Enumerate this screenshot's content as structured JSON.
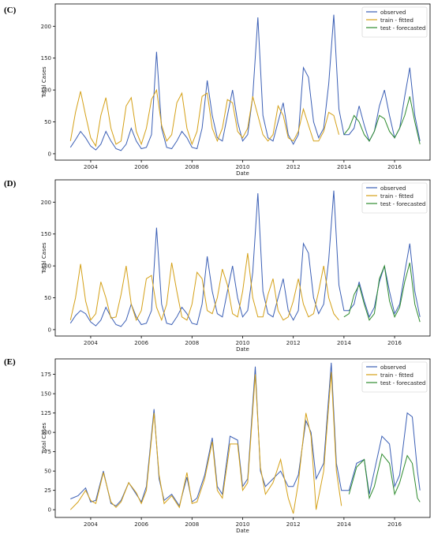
{
  "chart_data": [
    {
      "panel_label": "(C)",
      "type": "line",
      "xlabel": "Date",
      "ylabel": "Total Cases",
      "xlim": [
        2002.6,
        2017.4
      ],
      "ylim": [
        -10,
        235
      ],
      "xticks": [
        2004,
        2006,
        2008,
        2010,
        2012,
        2014,
        2016
      ],
      "yticks": [
        0,
        50,
        100,
        150,
        200
      ],
      "legend_position": "top-right",
      "series": [
        {
          "name": "observed",
          "color": "#3b5fb5",
          "x": [
            2003.2,
            2003.4,
            2003.6,
            2003.8,
            2004.0,
            2004.2,
            2004.4,
            2004.6,
            2004.8,
            2005.0,
            2005.2,
            2005.4,
            2005.6,
            2005.8,
            2006.0,
            2006.2,
            2006.4,
            2006.6,
            2006.8,
            2007.0,
            2007.2,
            2007.4,
            2007.6,
            2007.8,
            2008.0,
            2008.2,
            2008.4,
            2008.6,
            2008.8,
            2009.0,
            2009.2,
            2009.4,
            2009.6,
            2009.8,
            2010.0,
            2010.2,
            2010.4,
            2010.6,
            2010.8,
            2011.0,
            2011.2,
            2011.4,
            2011.6,
            2011.8,
            2012.0,
            2012.2,
            2012.4,
            2012.6,
            2012.8,
            2013.0,
            2013.2,
            2013.4,
            2013.6,
            2013.8,
            2014.0,
            2014.2,
            2014.4,
            2014.6,
            2014.8,
            2015.0,
            2015.2,
            2015.4,
            2015.6,
            2015.8,
            2016.0,
            2016.2,
            2016.4,
            2016.6,
            2016.8,
            2017.0
          ],
          "y": [
            10,
            22,
            35,
            25,
            12,
            6,
            15,
            35,
            20,
            8,
            5,
            15,
            40,
            20,
            8,
            10,
            30,
            160,
            40,
            10,
            8,
            20,
            35,
            25,
            10,
            8,
            40,
            115,
            60,
            25,
            20,
            60,
            100,
            50,
            20,
            30,
            90,
            214,
            60,
            25,
            20,
            50,
            80,
            30,
            15,
            30,
            135,
            120,
            50,
            25,
            40,
            110,
            218,
            70,
            30,
            30,
            40,
            75,
            45,
            20,
            35,
            75,
            100,
            60,
            25,
            40,
            90,
            135,
            60,
            20
          ]
        },
        {
          "name": "train - fitted",
          "color": "#d4a017",
          "x": [
            2003.2,
            2003.4,
            2003.6,
            2003.8,
            2004.0,
            2004.2,
            2004.4,
            2004.6,
            2004.8,
            2005.0,
            2005.2,
            2005.4,
            2005.6,
            2005.8,
            2006.0,
            2006.2,
            2006.4,
            2006.6,
            2006.8,
            2007.0,
            2007.2,
            2007.4,
            2007.6,
            2007.8,
            2008.0,
            2008.2,
            2008.4,
            2008.6,
            2008.8,
            2009.0,
            2009.2,
            2009.4,
            2009.6,
            2009.8,
            2010.0,
            2010.2,
            2010.4,
            2010.6,
            2010.8,
            2011.0,
            2011.2,
            2011.4,
            2011.6,
            2011.8,
            2012.0,
            2012.2,
            2012.4,
            2012.6,
            2012.8,
            2013.0,
            2013.2,
            2013.4,
            2013.6,
            2013.8
          ],
          "y": [
            20,
            65,
            98,
            60,
            25,
            12,
            60,
            88,
            40,
            15,
            20,
            75,
            88,
            35,
            15,
            40,
            85,
            100,
            45,
            20,
            30,
            80,
            95,
            40,
            15,
            35,
            90,
            95,
            40,
            20,
            40,
            85,
            80,
            35,
            25,
            40,
            90,
            60,
            30,
            20,
            30,
            75,
            60,
            25,
            20,
            35,
            70,
            45,
            20,
            20,
            35,
            65,
            60,
            30
          ]
        },
        {
          "name": "test - forecasted",
          "color": "#2e8b2e",
          "x": [
            2014.0,
            2014.2,
            2014.4,
            2014.6,
            2014.8,
            2015.0,
            2015.2,
            2015.4,
            2015.6,
            2015.8,
            2016.0,
            2016.2,
            2016.4,
            2016.6,
            2016.8,
            2017.0
          ],
          "y": [
            30,
            40,
            60,
            50,
            30,
            20,
            35,
            60,
            55,
            35,
            25,
            40,
            60,
            90,
            50,
            15
          ]
        }
      ]
    },
    {
      "panel_label": "(D)",
      "type": "line",
      "xlabel": "Date",
      "ylabel": "Total Cases",
      "xlim": [
        2002.6,
        2017.4
      ],
      "ylim": [
        -10,
        235
      ],
      "xticks": [
        2004,
        2006,
        2008,
        2010,
        2012,
        2014,
        2016
      ],
      "yticks": [
        0,
        50,
        100,
        150,
        200
      ],
      "legend_position": "top-right",
      "series": [
        {
          "name": "observed",
          "color": "#3b5fb5",
          "x": [
            2003.2,
            2003.4,
            2003.6,
            2003.8,
            2004.0,
            2004.2,
            2004.4,
            2004.6,
            2004.8,
            2005.0,
            2005.2,
            2005.4,
            2005.6,
            2005.8,
            2006.0,
            2006.2,
            2006.4,
            2006.6,
            2006.8,
            2007.0,
            2007.2,
            2007.4,
            2007.6,
            2007.8,
            2008.0,
            2008.2,
            2008.4,
            2008.6,
            2008.8,
            2009.0,
            2009.2,
            2009.4,
            2009.6,
            2009.8,
            2010.0,
            2010.2,
            2010.4,
            2010.6,
            2010.8,
            2011.0,
            2011.2,
            2011.4,
            2011.6,
            2011.8,
            2012.0,
            2012.2,
            2012.4,
            2012.6,
            2012.8,
            2013.0,
            2013.2,
            2013.4,
            2013.6,
            2013.8,
            2014.0,
            2014.2,
            2014.4,
            2014.6,
            2014.8,
            2015.0,
            2015.2,
            2015.4,
            2015.6,
            2015.8,
            2016.0,
            2016.2,
            2016.4,
            2016.6,
            2016.8,
            2017.0
          ],
          "y": [
            10,
            22,
            30,
            25,
            12,
            6,
            15,
            35,
            20,
            8,
            5,
            15,
            40,
            20,
            8,
            10,
            30,
            160,
            40,
            10,
            8,
            20,
            35,
            25,
            10,
            8,
            40,
            115,
            60,
            25,
            20,
            60,
            100,
            50,
            20,
            30,
            90,
            214,
            60,
            25,
            20,
            50,
            80,
            30,
            15,
            30,
            135,
            120,
            50,
            25,
            40,
            110,
            218,
            70,
            30,
            30,
            40,
            75,
            45,
            20,
            35,
            75,
            100,
            60,
            25,
            40,
            90,
            135,
            60,
            20
          ]
        },
        {
          "name": "train - fitted",
          "color": "#d4a017",
          "x": [
            2003.2,
            2003.4,
            2003.6,
            2003.8,
            2004.0,
            2004.2,
            2004.4,
            2004.6,
            2004.8,
            2005.0,
            2005.2,
            2005.4,
            2005.6,
            2005.8,
            2006.0,
            2006.2,
            2006.4,
            2006.6,
            2006.8,
            2007.0,
            2007.2,
            2007.4,
            2007.6,
            2007.8,
            2008.0,
            2008.2,
            2008.4,
            2008.6,
            2008.8,
            2009.0,
            2009.2,
            2009.4,
            2009.6,
            2009.8,
            2010.0,
            2010.2,
            2010.4,
            2010.6,
            2010.8,
            2011.0,
            2011.2,
            2011.4,
            2011.6,
            2011.8,
            2012.0,
            2012.2,
            2012.4,
            2012.6,
            2012.8,
            2013.0,
            2013.2,
            2013.4,
            2013.6,
            2013.8
          ],
          "y": [
            15,
            50,
            103,
            45,
            15,
            25,
            75,
            50,
            18,
            20,
            55,
            100,
            40,
            15,
            30,
            80,
            85,
            35,
            15,
            40,
            105,
            60,
            20,
            15,
            40,
            90,
            80,
            30,
            25,
            50,
            95,
            70,
            25,
            20,
            60,
            120,
            50,
            20,
            20,
            55,
            80,
            30,
            15,
            20,
            45,
            80,
            40,
            20,
            25,
            60,
            100,
            50,
            25,
            15
          ]
        },
        {
          "name": "test - forecasted",
          "color": "#2e8b2e",
          "x": [
            2014.0,
            2014.2,
            2014.4,
            2014.6,
            2014.8,
            2015.0,
            2015.2,
            2015.4,
            2015.6,
            2015.8,
            2016.0,
            2016.2,
            2016.4,
            2016.6,
            2016.8,
            2017.0
          ],
          "y": [
            20,
            25,
            55,
            70,
            40,
            15,
            25,
            80,
            100,
            45,
            20,
            35,
            75,
            105,
            40,
            12
          ]
        }
      ]
    },
    {
      "panel_label": "(E)",
      "type": "line",
      "xlabel": "Date",
      "ylabel": "Total Cases",
      "xlim": [
        2002.6,
        2017.4
      ],
      "ylim": [
        -10,
        195
      ],
      "xticks": [
        2004,
        2006,
        2008,
        2010,
        2012,
        2014,
        2016
      ],
      "yticks": [
        0,
        25,
        50,
        75,
        100,
        125,
        150,
        175
      ],
      "legend_position": "top-right",
      "series": [
        {
          "name": "observed",
          "color": "#3b5fb5",
          "x": [
            2003.2,
            2003.5,
            2003.8,
            2004.0,
            2004.2,
            2004.5,
            2004.8,
            2005.0,
            2005.2,
            2005.5,
            2005.8,
            2006.0,
            2006.2,
            2006.5,
            2006.7,
            2006.9,
            2007.2,
            2007.5,
            2007.8,
            2008.0,
            2008.2,
            2008.5,
            2008.8,
            2009.0,
            2009.2,
            2009.5,
            2009.8,
            2010.0,
            2010.2,
            2010.5,
            2010.7,
            2010.9,
            2011.2,
            2011.5,
            2011.8,
            2012.0,
            2012.2,
            2012.5,
            2012.7,
            2012.9,
            2013.2,
            2013.5,
            2013.7,
            2013.9,
            2014.2,
            2014.5,
            2014.8,
            2015.0,
            2015.2,
            2015.5,
            2015.8,
            2016.0,
            2016.2,
            2016.5,
            2016.7,
            2016.9,
            2017.0
          ],
          "y": [
            14,
            18,
            28,
            10,
            12,
            50,
            8,
            5,
            12,
            35,
            20,
            10,
            30,
            130,
            40,
            12,
            20,
            5,
            42,
            10,
            15,
            45,
            93,
            30,
            20,
            95,
            90,
            30,
            40,
            185,
            50,
            30,
            40,
            50,
            30,
            30,
            45,
            115,
            100,
            40,
            60,
            190,
            60,
            25,
            25,
            60,
            65,
            20,
            50,
            95,
            85,
            30,
            45,
            125,
            120,
            50,
            25
          ]
        },
        {
          "name": "train - fitted",
          "color": "#d4a017",
          "x": [
            2003.2,
            2003.5,
            2003.8,
            2004.0,
            2004.2,
            2004.5,
            2004.8,
            2005.0,
            2005.2,
            2005.5,
            2005.8,
            2006.0,
            2006.2,
            2006.5,
            2006.7,
            2006.9,
            2007.2,
            2007.5,
            2007.8,
            2008.0,
            2008.2,
            2008.5,
            2008.8,
            2009.0,
            2009.2,
            2009.5,
            2009.8,
            2010.0,
            2010.2,
            2010.5,
            2010.7,
            2010.9,
            2011.2,
            2011.5,
            2011.8,
            2012.0,
            2012.2,
            2012.5,
            2012.7,
            2012.9,
            2013.2,
            2013.5,
            2013.7,
            2013.9
          ],
          "y": [
            0,
            10,
            25,
            12,
            8,
            48,
            10,
            3,
            10,
            35,
            22,
            8,
            25,
            125,
            45,
            8,
            18,
            3,
            48,
            8,
            10,
            40,
            88,
            25,
            15,
            85,
            85,
            25,
            35,
            175,
            55,
            20,
            35,
            65,
            15,
            -5,
            35,
            125,
            95,
            0,
            50,
            178,
            50,
            5
          ]
        },
        {
          "name": "test - forecasted",
          "color": "#2e8b2e",
          "x": [
            2014.2,
            2014.5,
            2014.8,
            2015.0,
            2015.2,
            2015.5,
            2015.8,
            2016.0,
            2016.2,
            2016.5,
            2016.7,
            2016.9,
            2017.0
          ],
          "y": [
            20,
            55,
            65,
            15,
            30,
            72,
            60,
            20,
            35,
            70,
            60,
            15,
            10
          ]
        }
      ]
    }
  ]
}
